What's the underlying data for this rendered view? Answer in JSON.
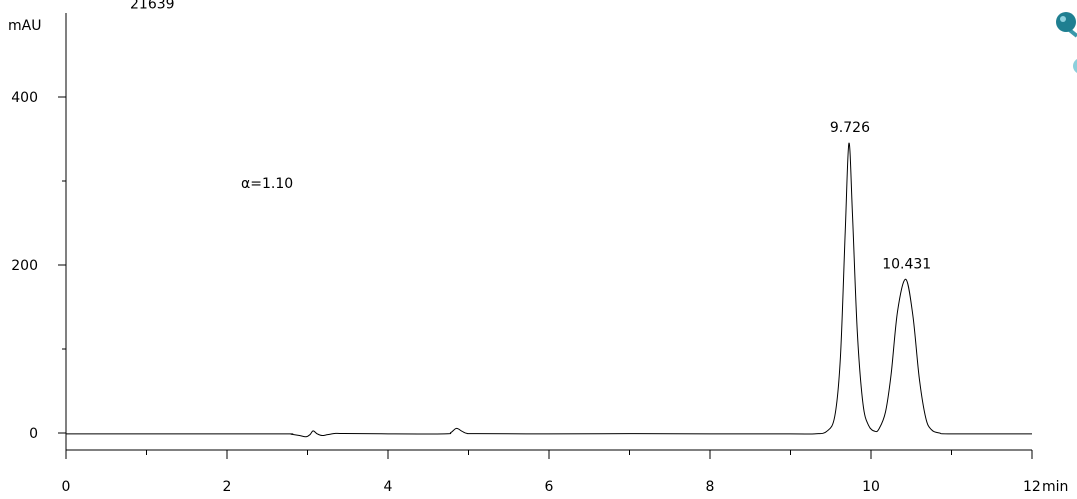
{
  "chart_data": {
    "type": "line",
    "title": "",
    "top_label": "21639",
    "ylabel": "mAU",
    "xunit": "min",
    "xlim": [
      0,
      12
    ],
    "ylim": [
      -20,
      500
    ],
    "x_ticks": [
      {
        "value": 0,
        "label": "0"
      },
      {
        "value": 2,
        "label": "2"
      },
      {
        "value": 4,
        "label": "4"
      },
      {
        "value": 6,
        "label": "6"
      },
      {
        "value": 8,
        "label": "8"
      },
      {
        "value": 10,
        "label": "10"
      },
      {
        "value": 12,
        "label": "12"
      }
    ],
    "x_minor_ticks": [
      1,
      3,
      5,
      7,
      9,
      11
    ],
    "y_ticks": [
      {
        "value": 0,
        "label": "0"
      },
      {
        "value": 200,
        "label": "200"
      },
      {
        "value": 400,
        "label": "400"
      }
    ],
    "y_minor_ticks": [
      100,
      300
    ],
    "annotation": "α=1.10",
    "peaks": [
      {
        "label": "9.726",
        "x": 9.726,
        "height": 345
      },
      {
        "label": "10.431",
        "x": 10.431,
        "height": 183
      }
    ],
    "series": [
      {
        "points": [
          [
            0,
            -1
          ],
          [
            1.0,
            -1
          ],
          [
            2.0,
            -1
          ],
          [
            2.75,
            -1
          ],
          [
            2.8,
            -1.5
          ],
          [
            2.9,
            -3
          ],
          [
            2.98,
            -4.5
          ],
          [
            3.03,
            -2
          ],
          [
            3.07,
            2.5
          ],
          [
            3.12,
            -1
          ],
          [
            3.18,
            -3
          ],
          [
            3.25,
            -2
          ],
          [
            3.35,
            -0.5
          ],
          [
            3.45,
            -0.6
          ],
          [
            4.0,
            -1
          ],
          [
            4.7,
            -1
          ],
          [
            4.78,
            0.5
          ],
          [
            4.85,
            5.5
          ],
          [
            4.92,
            2
          ],
          [
            4.98,
            -0.5
          ],
          [
            5.1,
            -0.8
          ],
          [
            6.0,
            -1
          ],
          [
            7.0,
            -0.8
          ],
          [
            8.0,
            -1
          ],
          [
            9.0,
            -1
          ],
          [
            9.3,
            -1
          ],
          [
            9.45,
            2
          ],
          [
            9.55,
            20
          ],
          [
            9.62,
            90
          ],
          [
            9.68,
            240
          ],
          [
            9.726,
            345
          ],
          [
            9.77,
            260
          ],
          [
            9.83,
            120
          ],
          [
            9.9,
            35
          ],
          [
            9.97,
            9
          ],
          [
            10.05,
            2
          ],
          [
            10.1,
            5
          ],
          [
            10.18,
            25
          ],
          [
            10.25,
            70
          ],
          [
            10.33,
            145
          ],
          [
            10.431,
            183
          ],
          [
            10.52,
            140
          ],
          [
            10.6,
            65
          ],
          [
            10.68,
            18
          ],
          [
            10.75,
            4
          ],
          [
            10.85,
            0
          ],
          [
            11.0,
            -1
          ],
          [
            12.0,
            -1
          ]
        ]
      }
    ]
  }
}
